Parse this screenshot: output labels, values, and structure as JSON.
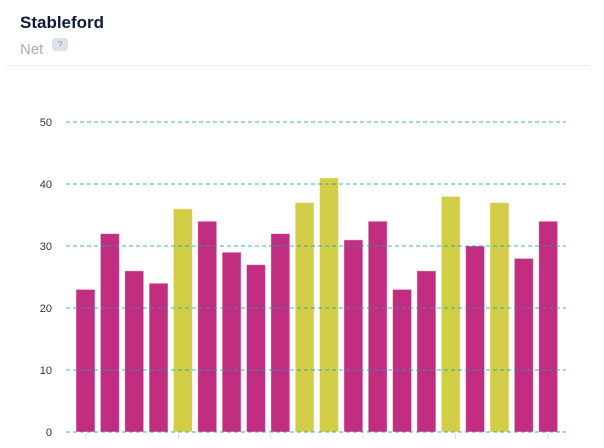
{
  "header": {
    "title": "Stableford",
    "subtitle": "Net",
    "help_icon": "question-bubble-icon",
    "help_text": "?"
  },
  "chart_data": {
    "type": "bar",
    "title": "",
    "xlabel": "",
    "ylabel": "",
    "ylim": [
      0,
      50
    ],
    "yticks": [
      0,
      10,
      20,
      30,
      40,
      50
    ],
    "grid": true,
    "values": [
      23,
      32,
      26,
      24,
      36,
      34,
      29,
      27,
      32,
      37,
      41,
      31,
      34,
      23,
      26,
      38,
      30,
      37,
      28,
      34
    ],
    "highlight": [
      false,
      false,
      false,
      false,
      true,
      false,
      false,
      false,
      false,
      true,
      true,
      false,
      false,
      false,
      false,
      true,
      false,
      true,
      false,
      false
    ],
    "colors": {
      "default": "#c12e80",
      "highlight": "#d1cd47",
      "grid": "#1b9ac8"
    }
  }
}
